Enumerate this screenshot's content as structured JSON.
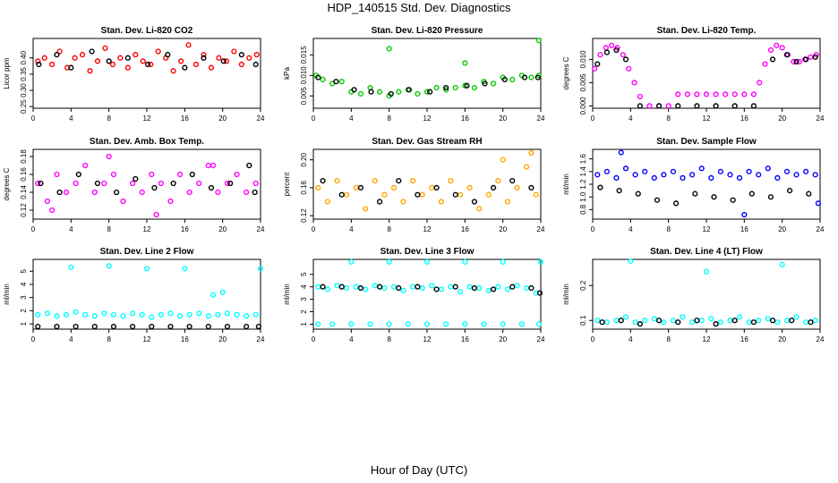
{
  "page": {
    "title": "HDP_140515  Std. Dev. Diagnostics",
    "xlabel": "Hour of Day (UTC)"
  },
  "colors": {
    "red": "#ff0000",
    "green": "#00cc00",
    "magenta": "#ff00ff",
    "orange": "#ffa500",
    "blue": "#0000ff",
    "cyan": "#00ffff",
    "black": "#000000"
  },
  "chart_data": [
    {
      "type": "scatter",
      "title": "Stan. Dev. Li-820 CO2",
      "ylabel": "Licor ppm",
      "x_ticks": [
        0,
        4,
        8,
        12,
        16,
        20,
        24
      ],
      "y_ticks": [
        0.25,
        0.3,
        0.35,
        0.4
      ],
      "xlim": [
        0,
        24
      ],
      "ylim": [
        0.245,
        0.46
      ],
      "series": [
        {
          "color": "red",
          "x": [
            0.5,
            1.2,
            2.0,
            2.8,
            3.6,
            4.4,
            5.2,
            6.0,
            6.8,
            7.6,
            8.4,
            9.2,
            10.0,
            10.8,
            11.6,
            12.4,
            13.2,
            14.0,
            14.8,
            15.6,
            16.4,
            17.2,
            18.0,
            18.8,
            19.6,
            20.4,
            21.2,
            22.0,
            22.8,
            23.6
          ],
          "y": [
            0.39,
            0.4,
            0.38,
            0.42,
            0.37,
            0.4,
            0.41,
            0.36,
            0.39,
            0.43,
            0.38,
            0.4,
            0.37,
            0.41,
            0.39,
            0.38,
            0.42,
            0.4,
            0.36,
            0.39,
            0.44,
            0.38,
            0.41,
            0.37,
            0.4,
            0.39,
            0.42,
            0.38,
            0.4,
            0.41
          ]
        },
        {
          "color": "black",
          "x": [
            0.6,
            2.5,
            4.0,
            6.2,
            8.0,
            10.0,
            12.1,
            14.2,
            16.0,
            18.0,
            20.1,
            22.0,
            23.5
          ],
          "y": [
            0.38,
            0.41,
            0.37,
            0.42,
            0.39,
            0.4,
            0.38,
            0.41,
            0.37,
            0.4,
            0.39,
            0.41,
            0.38
          ]
        }
      ]
    },
    {
      "type": "scatter",
      "title": "Stan. Dev. Li-820 Pressure",
      "ylabel": "kPa",
      "x_ticks": [
        0,
        4,
        8,
        12,
        16,
        20,
        24
      ],
      "y_ticks": [
        0.005,
        0.01,
        0.015
      ],
      "xlim": [
        0,
        24
      ],
      "ylim": [
        0.002,
        0.019
      ],
      "series": [
        {
          "color": "green",
          "x": [
            0.3,
            1.0,
            2.0,
            3.0,
            4.0,
            5.0,
            6.0,
            7.0,
            8.0,
            9.0,
            10.0,
            11.0,
            12.0,
            13.0,
            14.0,
            15.0,
            16.0,
            17.0,
            18.0,
            19.0,
            20.0,
            21.0,
            22.0,
            23.0,
            23.8,
            8.0,
            16.0,
            23.8
          ],
          "y": [
            0.01,
            0.009,
            0.008,
            0.0085,
            0.006,
            0.0055,
            0.007,
            0.006,
            0.005,
            0.006,
            0.0065,
            0.0055,
            0.006,
            0.007,
            0.0065,
            0.007,
            0.0075,
            0.007,
            0.0085,
            0.008,
            0.0095,
            0.009,
            0.01,
            0.0095,
            0.01,
            0.0165,
            0.013,
            0.0185
          ]
        },
        {
          "color": "black",
          "x": [
            0.5,
            2.4,
            4.3,
            6.1,
            8.2,
            10.1,
            12.3,
            14.0,
            16.2,
            18.1,
            20.2,
            22.3,
            23.7
          ],
          "y": [
            0.0095,
            0.0085,
            0.0065,
            0.006,
            0.0055,
            0.0065,
            0.006,
            0.007,
            0.0075,
            0.008,
            0.009,
            0.0095,
            0.0095
          ]
        }
      ]
    },
    {
      "type": "scatter",
      "title": "Stan. Dev. Li-820 Temp.",
      "ylabel": "degrees C",
      "x_ticks": [
        0,
        4,
        8,
        12,
        16,
        20,
        24
      ],
      "y_ticks": [
        0.0,
        0.005,
        0.01
      ],
      "xlim": [
        0,
        24
      ],
      "ylim": [
        -0.0005,
        0.0145
      ],
      "series": [
        {
          "color": "magenta",
          "x": [
            0.2,
            0.8,
            1.4,
            2.0,
            2.6,
            3.2,
            3.8,
            4.4,
            5.0,
            6.0,
            7.0,
            8.0,
            9.0,
            10.0,
            11.0,
            12.0,
            13.0,
            14.0,
            15.0,
            16.0,
            17.0,
            17.6,
            18.2,
            18.8,
            19.4,
            20.0,
            20.6,
            21.2,
            21.8,
            22.4,
            23.0,
            23.6
          ],
          "y": [
            0.008,
            0.011,
            0.0125,
            0.013,
            0.0125,
            0.011,
            0.008,
            0.005,
            0.002,
            0.0,
            0.0,
            0.0,
            0.0025,
            0.0025,
            0.0025,
            0.0025,
            0.0025,
            0.0025,
            0.0025,
            0.0025,
            0.0025,
            0.005,
            0.009,
            0.012,
            0.013,
            0.0125,
            0.011,
            0.0095,
            0.0095,
            0.01,
            0.0105,
            0.011
          ]
        },
        {
          "color": "black",
          "x": [
            0.5,
            1.5,
            2.5,
            3.5,
            5.0,
            7.0,
            9.0,
            11.0,
            13.0,
            15.0,
            17.0,
            19.0,
            20.5,
            21.5,
            22.5,
            23.5
          ],
          "y": [
            0.009,
            0.0115,
            0.012,
            0.01,
            0.0,
            0.0,
            0.0,
            0.0,
            0.0,
            0.0,
            0.0,
            0.01,
            0.011,
            0.0095,
            0.01,
            0.0105
          ]
        }
      ]
    },
    {
      "type": "scatter",
      "title": "Stan. Dev. Amb. Box Temp.",
      "ylabel": "degrees C",
      "x_ticks": [
        0,
        4,
        8,
        12,
        16,
        20,
        24
      ],
      "y_ticks": [
        0.12,
        0.14,
        0.16,
        0.18
      ],
      "xlim": [
        0,
        24
      ],
      "ylim": [
        0.11,
        0.188
      ],
      "series": [
        {
          "color": "magenta",
          "x": [
            0.5,
            1.5,
            2.5,
            3.5,
            4.5,
            5.5,
            6.5,
            7.5,
            8.5,
            9.5,
            10.5,
            11.5,
            12.5,
            13.5,
            14.5,
            15.5,
            16.5,
            17.5,
            18.5,
            19.5,
            20.5,
            21.5,
            22.5,
            23.5,
            2.0,
            8.0,
            13.0,
            19.0
          ],
          "y": [
            0.15,
            0.13,
            0.16,
            0.14,
            0.15,
            0.17,
            0.14,
            0.15,
            0.16,
            0.13,
            0.15,
            0.14,
            0.16,
            0.15,
            0.13,
            0.16,
            0.14,
            0.15,
            0.17,
            0.14,
            0.15,
            0.16,
            0.14,
            0.15,
            0.12,
            0.18,
            0.115,
            0.17
          ]
        },
        {
          "color": "black",
          "x": [
            0.8,
            2.8,
            4.8,
            6.8,
            8.8,
            10.8,
            12.8,
            14.8,
            16.8,
            18.8,
            20.8,
            22.8,
            23.4
          ],
          "y": [
            0.15,
            0.14,
            0.16,
            0.15,
            0.14,
            0.155,
            0.145,
            0.15,
            0.16,
            0.145,
            0.15,
            0.17,
            0.14
          ]
        }
      ]
    },
    {
      "type": "scatter",
      "title": "Stan. Dev. Gas Stream RH",
      "ylabel": "percent",
      "x_ticks": [
        0,
        4,
        8,
        12,
        16,
        20,
        24
      ],
      "y_ticks": [
        0.12,
        0.16,
        0.2
      ],
      "xlim": [
        0,
        24
      ],
      "ylim": [
        0.115,
        0.215
      ],
      "series": [
        {
          "color": "orange",
          "x": [
            0.5,
            1.5,
            2.5,
            3.5,
            4.5,
            5.5,
            6.5,
            7.5,
            8.5,
            9.5,
            10.5,
            11.5,
            12.5,
            13.5,
            14.5,
            15.5,
            16.5,
            17.5,
            18.5,
            19.5,
            20.5,
            21.5,
            22.5,
            23.5,
            20.0,
            23.0
          ],
          "y": [
            0.16,
            0.14,
            0.17,
            0.15,
            0.16,
            0.13,
            0.17,
            0.15,
            0.16,
            0.14,
            0.17,
            0.15,
            0.16,
            0.14,
            0.17,
            0.15,
            0.16,
            0.13,
            0.15,
            0.17,
            0.14,
            0.16,
            0.19,
            0.15,
            0.2,
            0.21
          ]
        },
        {
          "color": "black",
          "x": [
            1.0,
            3.0,
            5.0,
            7.0,
            9.0,
            11.0,
            13.0,
            15.0,
            17.0,
            19.0,
            21.0,
            23.0
          ],
          "y": [
            0.17,
            0.15,
            0.16,
            0.14,
            0.17,
            0.15,
            0.16,
            0.15,
            0.14,
            0.16,
            0.17,
            0.16
          ]
        }
      ]
    },
    {
      "type": "scatter",
      "title": "Stan. Dev. Sample Flow",
      "ylabel": "ml/min",
      "x_ticks": [
        0,
        4,
        8,
        12,
        16,
        20,
        24
      ],
      "y_ticks": [
        0.8,
        1.0,
        1.2,
        1.4,
        1.6
      ],
      "xlim": [
        0,
        24
      ],
      "ylim": [
        0.65,
        1.75
      ],
      "series": [
        {
          "color": "blue",
          "x": [
            0.5,
            1.5,
            2.5,
            3.5,
            4.5,
            5.5,
            6.5,
            7.5,
            8.5,
            9.5,
            10.5,
            11.5,
            12.5,
            13.5,
            14.5,
            15.5,
            16.5,
            17.5,
            18.5,
            19.5,
            20.5,
            21.5,
            22.5,
            23.5,
            3.0,
            16.0,
            23.8
          ],
          "y": [
            1.35,
            1.4,
            1.3,
            1.45,
            1.35,
            1.4,
            1.3,
            1.35,
            1.4,
            1.3,
            1.35,
            1.45,
            1.3,
            1.4,
            1.35,
            1.3,
            1.4,
            1.35,
            1.45,
            1.3,
            1.4,
            1.35,
            1.4,
            1.35,
            1.7,
            0.72,
            0.9
          ]
        },
        {
          "color": "black",
          "x": [
            0.8,
            2.8,
            4.8,
            6.8,
            8.8,
            10.8,
            12.8,
            14.8,
            16.8,
            18.8,
            20.8,
            22.8
          ],
          "y": [
            1.15,
            1.1,
            1.05,
            0.95,
            0.9,
            1.05,
            1.0,
            0.95,
            1.05,
            1.0,
            1.1,
            1.05
          ]
        }
      ]
    },
    {
      "type": "scatter",
      "title": "Stan. Dev. Line 2 Flow",
      "ylabel": "ml/min",
      "x_ticks": [
        0,
        4,
        8,
        12,
        16,
        20,
        24
      ],
      "y_ticks": [
        1,
        2,
        3,
        4,
        5
      ],
      "xlim": [
        0,
        24
      ],
      "ylim": [
        0.6,
        5.9
      ],
      "series": [
        {
          "color": "cyan",
          "x": [
            0.5,
            1.5,
            2.5,
            3.5,
            4.5,
            5.5,
            6.5,
            7.5,
            8.5,
            9.5,
            10.5,
            11.5,
            12.5,
            13.5,
            14.5,
            15.5,
            16.5,
            17.5,
            18.5,
            19.5,
            20.5,
            21.5,
            22.5,
            23.5,
            4.0,
            8.0,
            12.0,
            16.0,
            19.0,
            20.0,
            24.0
          ],
          "y": [
            1.7,
            1.8,
            1.6,
            1.7,
            1.9,
            1.7,
            1.6,
            1.8,
            1.7,
            1.6,
            1.8,
            1.7,
            1.5,
            1.7,
            1.8,
            1.6,
            1.7,
            1.8,
            1.6,
            1.7,
            1.8,
            1.7,
            1.6,
            1.7,
            5.3,
            5.4,
            5.2,
            5.2,
            3.2,
            3.4,
            5.2
          ]
        },
        {
          "color": "black",
          "x": [
            0.5,
            2.5,
            4.5,
            6.5,
            8.5,
            10.5,
            12.5,
            14.5,
            16.5,
            18.5,
            20.5,
            22.5,
            23.8
          ],
          "y": [
            0.8,
            0.8,
            0.8,
            0.8,
            0.8,
            0.8,
            0.8,
            0.8,
            0.8,
            0.8,
            0.8,
            0.8,
            0.8
          ]
        }
      ]
    },
    {
      "type": "scatter",
      "title": "Stan. Dev. Line 3 Flow",
      "ylabel": "ml/min",
      "x_ticks": [
        0,
        4,
        8,
        12,
        16,
        20,
        24
      ],
      "y_ticks": [
        1,
        2,
        3,
        4,
        5
      ],
      "xlim": [
        0,
        24
      ],
      "ylim": [
        0.6,
        6.2
      ],
      "series": [
        {
          "color": "cyan",
          "x": [
            0.5,
            1.5,
            2.5,
            3.5,
            4.5,
            5.5,
            6.5,
            7.5,
            8.5,
            9.5,
            10.5,
            11.5,
            12.5,
            13.5,
            14.5,
            15.5,
            16.5,
            17.5,
            18.5,
            19.5,
            20.5,
            21.5,
            22.5,
            23.5,
            4.0,
            8.0,
            12.0,
            16.0,
            20.0,
            24.0,
            0.5,
            2.0,
            4.0,
            6.0,
            8.0,
            10.0,
            12.0,
            14.0,
            16.0,
            18.0,
            20.0,
            22.0,
            23.8
          ],
          "y": [
            4.0,
            3.8,
            4.1,
            3.9,
            4.0,
            3.8,
            4.1,
            3.9,
            4.0,
            3.7,
            4.0,
            3.9,
            4.1,
            3.8,
            4.0,
            3.6,
            4.0,
            3.9,
            3.7,
            4.0,
            3.8,
            4.1,
            3.9,
            3.5,
            6.0,
            6.0,
            6.0,
            6.0,
            6.0,
            6.0,
            1.0,
            1.0,
            1.0,
            1.0,
            1.0,
            1.0,
            1.0,
            1.0,
            1.0,
            1.0,
            1.0,
            1.0,
            1.0
          ]
        },
        {
          "color": "black",
          "x": [
            1.0,
            3.0,
            5.0,
            7.0,
            9.0,
            11.0,
            13.0,
            15.0,
            17.0,
            19.0,
            21.0,
            23.0,
            23.9
          ],
          "y": [
            4.0,
            4.0,
            3.9,
            4.0,
            3.9,
            4.0,
            3.8,
            4.0,
            3.9,
            3.8,
            4.0,
            3.9,
            3.5
          ]
        }
      ]
    },
    {
      "type": "scatter",
      "title": "Stan. Dev. Line 4 (LT) Flow",
      "ylabel": "ml/min",
      "x_ticks": [
        0,
        4,
        8,
        12,
        16,
        20,
        24
      ],
      "y_ticks": [
        0.1,
        0.2
      ],
      "xlim": [
        0,
        24
      ],
      "ylim": [
        0.075,
        0.275
      ],
      "series": [
        {
          "color": "cyan",
          "x": [
            0.5,
            1.5,
            2.5,
            3.5,
            4.5,
            5.5,
            6.5,
            7.5,
            8.5,
            9.5,
            10.5,
            11.5,
            12.5,
            13.5,
            14.5,
            15.5,
            16.5,
            17.5,
            18.5,
            19.5,
            20.5,
            21.5,
            22.5,
            23.5,
            4.0,
            12.0,
            20.0
          ],
          "y": [
            0.1,
            0.095,
            0.1,
            0.11,
            0.095,
            0.1,
            0.105,
            0.095,
            0.1,
            0.11,
            0.095,
            0.1,
            0.105,
            0.095,
            0.1,
            0.11,
            0.095,
            0.1,
            0.105,
            0.095,
            0.1,
            0.11,
            0.095,
            0.1,
            0.27,
            0.24,
            0.26
          ]
        },
        {
          "color": "black",
          "x": [
            1.0,
            3.0,
            5.0,
            7.0,
            9.0,
            11.0,
            13.0,
            15.0,
            17.0,
            19.0,
            21.0,
            23.0
          ],
          "y": [
            0.095,
            0.1,
            0.09,
            0.1,
            0.095,
            0.1,
            0.09,
            0.1,
            0.095,
            0.1,
            0.1,
            0.095
          ]
        }
      ]
    }
  ]
}
